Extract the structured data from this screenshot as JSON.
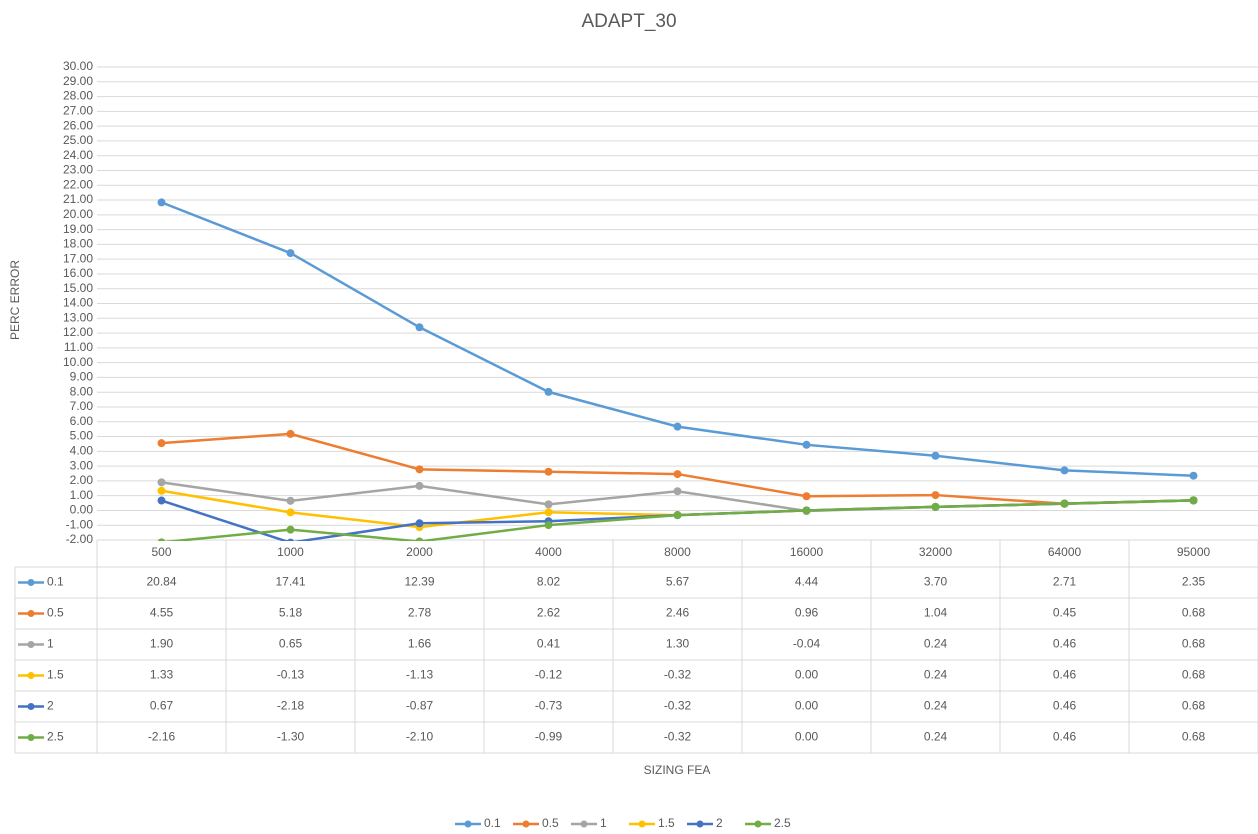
{
  "chart_data": {
    "type": "line",
    "title": "ADAPT_30",
    "y_label": "PERC ERROR",
    "x_label": "SIZING FEA",
    "categories": [
      "500",
      "1000",
      "2000",
      "4000",
      "8000",
      "16000",
      "32000",
      "64000",
      "95000"
    ],
    "series": [
      {
        "name": "0.1",
        "color": "#5b9bd5",
        "values": [
          20.84,
          17.41,
          12.39,
          8.02,
          5.67,
          4.44,
          3.7,
          2.71,
          2.35
        ],
        "value_labels": [
          "20.84",
          "17.41",
          "12.39",
          "8.02",
          "5.67",
          "4.44",
          "3.70",
          "2.71",
          "2.35"
        ]
      },
      {
        "name": "0.5",
        "color": "#ed7d31",
        "values": [
          4.55,
          5.18,
          2.78,
          2.62,
          2.46,
          0.96,
          1.04,
          0.45,
          0.68
        ],
        "value_labels": [
          "4.55",
          "5.18",
          "2.78",
          "2.62",
          "2.46",
          "0.96",
          "1.04",
          "0.45",
          "0.68"
        ]
      },
      {
        "name": "1",
        "color": "#a5a5a5",
        "values": [
          1.9,
          0.65,
          1.66,
          0.41,
          1.3,
          -0.04,
          0.24,
          0.46,
          0.68
        ],
        "value_labels": [
          "1.90",
          "0.65",
          "1.66",
          "0.41",
          "1.30",
          "-0.04",
          "0.24",
          "0.46",
          "0.68"
        ]
      },
      {
        "name": "1.5",
        "color": "#ffc000",
        "values": [
          1.33,
          -0.13,
          -1.13,
          -0.12,
          -0.32,
          0.0,
          0.24,
          0.46,
          0.68
        ],
        "value_labels": [
          "1.33",
          "-0.13",
          "-1.13",
          "-0.12",
          "-0.32",
          "0.00",
          "0.24",
          "0.46",
          "0.68"
        ]
      },
      {
        "name": "2",
        "color": "#4472c4",
        "values": [
          0.67,
          -2.18,
          -0.87,
          -0.73,
          -0.32,
          0.0,
          0.24,
          0.46,
          0.68
        ],
        "value_labels": [
          "0.67",
          "-2.18",
          "-0.87",
          "-0.73",
          "-0.32",
          "0.00",
          "0.24",
          "0.46",
          "0.68"
        ]
      },
      {
        "name": "2.5",
        "color": "#70ad47",
        "values": [
          -2.16,
          -1.3,
          -2.1,
          -0.99,
          -0.32,
          0.0,
          0.24,
          0.46,
          0.68
        ],
        "value_labels": [
          "-2.16",
          "-1.30",
          "-2.10",
          "-0.99",
          "-0.32",
          "0.00",
          "0.24",
          "0.46",
          "0.68"
        ]
      }
    ],
    "ylim": [
      -2,
      30
    ],
    "yticks": [
      {
        "value": -2,
        "label": "-2.00"
      },
      {
        "value": -1,
        "label": "-1.00"
      },
      {
        "value": 0,
        "label": "0.00"
      },
      {
        "value": 1,
        "label": "1.00"
      },
      {
        "value": 2,
        "label": "2.00"
      },
      {
        "value": 3,
        "label": "3.00"
      },
      {
        "value": 4,
        "label": "4.00"
      },
      {
        "value": 5,
        "label": "5.00"
      },
      {
        "value": 6,
        "label": "6.00"
      },
      {
        "value": 7,
        "label": "7.00"
      },
      {
        "value": 8,
        "label": "8.00"
      },
      {
        "value": 9,
        "label": "9.00"
      },
      {
        "value": 10,
        "label": "10.00"
      },
      {
        "value": 11,
        "label": "11.00"
      },
      {
        "value": 12,
        "label": "12.00"
      },
      {
        "value": 13,
        "label": "13.00"
      },
      {
        "value": 14,
        "label": "14.00"
      },
      {
        "value": 15,
        "label": "15.00"
      },
      {
        "value": 16,
        "label": "16.00"
      },
      {
        "value": 17,
        "label": "17.00"
      },
      {
        "value": 18,
        "label": "18.00"
      },
      {
        "value": 19,
        "label": "19.00"
      },
      {
        "value": 20,
        "label": "20.00"
      },
      {
        "value": 21,
        "label": "21.00"
      },
      {
        "value": 22,
        "label": "22.00"
      },
      {
        "value": 23,
        "label": "23.00"
      },
      {
        "value": 24,
        "label": "24.00"
      },
      {
        "value": 25,
        "label": "25.00"
      },
      {
        "value": 26,
        "label": "26.00"
      },
      {
        "value": 27,
        "label": "27.00"
      },
      {
        "value": 28,
        "label": "28.00"
      },
      {
        "value": 29,
        "label": "29.00"
      },
      {
        "value": 30,
        "label": "30.00"
      }
    ],
    "grid": true,
    "legend": "bottom"
  }
}
